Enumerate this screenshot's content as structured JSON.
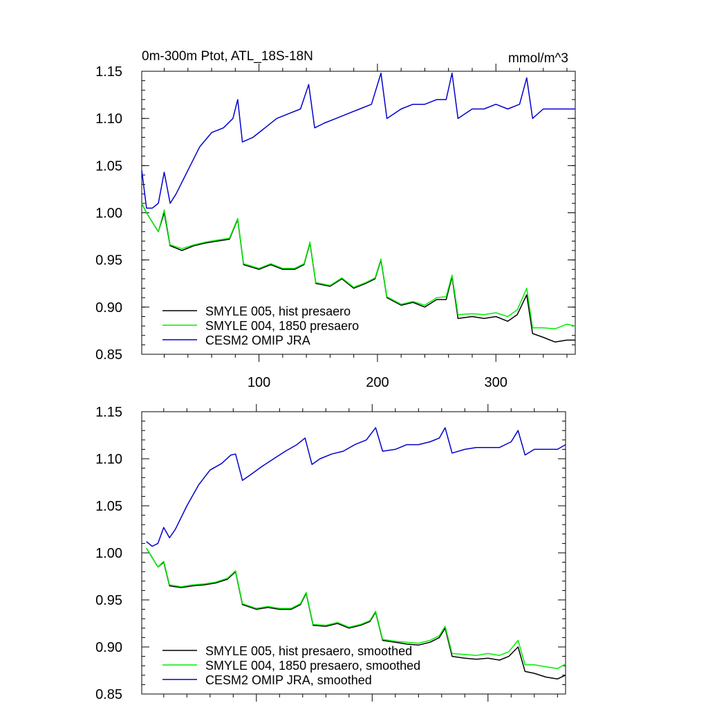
{
  "chart_data": [
    {
      "type": "line",
      "title": "0m-300m Ptot, ATL_18S-18N",
      "units": "mmol/m^3",
      "xlim": [
        1,
        367
      ],
      "ylim": [
        0.85,
        1.15
      ],
      "yticks": [
        "0.85",
        "0.90",
        "0.95",
        "1.00",
        "1.05",
        "1.10",
        "1.15"
      ],
      "xticks": [
        "100",
        "200",
        "300"
      ],
      "grid": false,
      "legend_position": "bottom-left",
      "series": [
        {
          "name": "SMYLE 005, hist presaero",
          "color": "#000000",
          "points": [
            [
              1,
              1.01
            ],
            [
              5,
              1.0
            ],
            [
              10,
              0.99
            ],
            [
              15,
              0.98
            ],
            [
              20,
              1.0
            ],
            [
              25,
              0.965
            ],
            [
              35,
              0.96
            ],
            [
              45,
              0.965
            ],
            [
              55,
              0.968
            ],
            [
              65,
              0.97
            ],
            [
              75,
              0.972
            ],
            [
              82,
              0.993
            ],
            [
              87,
              0.945
            ],
            [
              100,
              0.94
            ],
            [
              110,
              0.945
            ],
            [
              120,
              0.94
            ],
            [
              130,
              0.94
            ],
            [
              138,
              0.945
            ],
            [
              143,
              0.968
            ],
            [
              148,
              0.925
            ],
            [
              160,
              0.922
            ],
            [
              170,
              0.93
            ],
            [
              180,
              0.92
            ],
            [
              190,
              0.925
            ],
            [
              198,
              0.93
            ],
            [
              203,
              0.95
            ],
            [
              208,
              0.91
            ],
            [
              220,
              0.902
            ],
            [
              230,
              0.905
            ],
            [
              240,
              0.9
            ],
            [
              250,
              0.908
            ],
            [
              258,
              0.908
            ],
            [
              263,
              0.932
            ],
            [
              268,
              0.888
            ],
            [
              280,
              0.89
            ],
            [
              290,
              0.888
            ],
            [
              300,
              0.89
            ],
            [
              310,
              0.885
            ],
            [
              318,
              0.892
            ],
            [
              326,
              0.913
            ],
            [
              331,
              0.872
            ],
            [
              340,
              0.868
            ],
            [
              350,
              0.863
            ],
            [
              360,
              0.865
            ],
            [
              367,
              0.865
            ]
          ]
        },
        {
          "name": "SMYLE 004, 1850 presaero",
          "color": "#00ee00",
          "points": [
            [
              1,
              1.01
            ],
            [
              5,
              1.0
            ],
            [
              10,
              0.99
            ],
            [
              15,
              0.98
            ],
            [
              20,
              1.003
            ],
            [
              25,
              0.966
            ],
            [
              35,
              0.962
            ],
            [
              45,
              0.966
            ],
            [
              55,
              0.969
            ],
            [
              65,
              0.971
            ],
            [
              75,
              0.973
            ],
            [
              82,
              0.994
            ],
            [
              87,
              0.946
            ],
            [
              100,
              0.941
            ],
            [
              110,
              0.946
            ],
            [
              120,
              0.941
            ],
            [
              130,
              0.941
            ],
            [
              138,
              0.946
            ],
            [
              143,
              0.969
            ],
            [
              148,
              0.926
            ],
            [
              160,
              0.923
            ],
            [
              170,
              0.931
            ],
            [
              180,
              0.921
            ],
            [
              190,
              0.926
            ],
            [
              198,
              0.931
            ],
            [
              203,
              0.951
            ],
            [
              208,
              0.911
            ],
            [
              220,
              0.903
            ],
            [
              230,
              0.906
            ],
            [
              240,
              0.902
            ],
            [
              250,
              0.91
            ],
            [
              258,
              0.911
            ],
            [
              263,
              0.934
            ],
            [
              268,
              0.892
            ],
            [
              280,
              0.893
            ],
            [
              290,
              0.892
            ],
            [
              300,
              0.894
            ],
            [
              310,
              0.89
            ],
            [
              318,
              0.897
            ],
            [
              326,
              0.92
            ],
            [
              331,
              0.878
            ],
            [
              340,
              0.878
            ],
            [
              350,
              0.877
            ],
            [
              360,
              0.882
            ],
            [
              367,
              0.88
            ]
          ]
        },
        {
          "name": "CESM2 OMIP JRA",
          "color": "#0000cc",
          "points": [
            [
              1,
              1.045
            ],
            [
              5,
              1.005
            ],
            [
              10,
              1.005
            ],
            [
              15,
              1.01
            ],
            [
              20,
              1.043
            ],
            [
              25,
              1.01
            ],
            [
              30,
              1.02
            ],
            [
              40,
              1.045
            ],
            [
              50,
              1.07
            ],
            [
              60,
              1.085
            ],
            [
              70,
              1.09
            ],
            [
              78,
              1.1
            ],
            [
              82,
              1.12
            ],
            [
              86,
              1.075
            ],
            [
              95,
              1.08
            ],
            [
              105,
              1.09
            ],
            [
              115,
              1.1
            ],
            [
              125,
              1.105
            ],
            [
              135,
              1.11
            ],
            [
              142,
              1.136
            ],
            [
              147,
              1.09
            ],
            [
              155,
              1.095
            ],
            [
              165,
              1.1
            ],
            [
              175,
              1.105
            ],
            [
              185,
              1.11
            ],
            [
              195,
              1.115
            ],
            [
              203,
              1.148
            ],
            [
              208,
              1.1
            ],
            [
              220,
              1.11
            ],
            [
              230,
              1.115
            ],
            [
              240,
              1.115
            ],
            [
              250,
              1.12
            ],
            [
              258,
              1.12
            ],
            [
              263,
              1.148
            ],
            [
              268,
              1.1
            ],
            [
              280,
              1.11
            ],
            [
              290,
              1.11
            ],
            [
              300,
              1.115
            ],
            [
              310,
              1.11
            ],
            [
              320,
              1.115
            ],
            [
              326,
              1.143
            ],
            [
              331,
              1.1
            ],
            [
              340,
              1.11
            ],
            [
              350,
              1.11
            ],
            [
              360,
              1.11
            ],
            [
              367,
              1.11
            ]
          ]
        }
      ]
    },
    {
      "type": "line",
      "title": "",
      "xlim": [
        1,
        367
      ],
      "ylim": [
        0.85,
        1.15
      ],
      "yticks": [
        "0.85",
        "0.90",
        "0.95",
        "1.00",
        "1.05",
        "1.10",
        "1.15"
      ],
      "grid": false,
      "legend_position": "bottom-left",
      "series": [
        {
          "name": "SMYLE 005, hist presaero, smoothed",
          "color": "#000000",
          "points": [
            [
              5,
              1.005
            ],
            [
              10,
              0.995
            ],
            [
              15,
              0.985
            ],
            [
              20,
              0.99
            ],
            [
              25,
              0.965
            ],
            [
              35,
              0.963
            ],
            [
              45,
              0.965
            ],
            [
              55,
              0.966
            ],
            [
              65,
              0.968
            ],
            [
              75,
              0.972
            ],
            [
              82,
              0.98
            ],
            [
              88,
              0.945
            ],
            [
              100,
              0.94
            ],
            [
              110,
              0.942
            ],
            [
              120,
              0.94
            ],
            [
              130,
              0.94
            ],
            [
              138,
              0.945
            ],
            [
              143,
              0.957
            ],
            [
              149,
              0.923
            ],
            [
              160,
              0.922
            ],
            [
              170,
              0.925
            ],
            [
              180,
              0.92
            ],
            [
              190,
              0.923
            ],
            [
              198,
              0.927
            ],
            [
              203,
              0.937
            ],
            [
              209,
              0.907
            ],
            [
              220,
              0.905
            ],
            [
              230,
              0.903
            ],
            [
              240,
              0.902
            ],
            [
              250,
              0.905
            ],
            [
              258,
              0.91
            ],
            [
              263,
              0.92
            ],
            [
              269,
              0.89
            ],
            [
              280,
              0.888
            ],
            [
              290,
              0.887
            ],
            [
              300,
              0.888
            ],
            [
              310,
              0.886
            ],
            [
              318,
              0.89
            ],
            [
              326,
              0.9
            ],
            [
              332,
              0.874
            ],
            [
              340,
              0.872
            ],
            [
              350,
              0.868
            ],
            [
              360,
              0.866
            ],
            [
              367,
              0.87
            ]
          ]
        },
        {
          "name": "SMYLE 004, 1850 presaero, smoothed",
          "color": "#00ee00",
          "points": [
            [
              5,
              1.005
            ],
            [
              10,
              0.995
            ],
            [
              15,
              0.985
            ],
            [
              20,
              0.991
            ],
            [
              25,
              0.966
            ],
            [
              35,
              0.964
            ],
            [
              45,
              0.966
            ],
            [
              55,
              0.967
            ],
            [
              65,
              0.969
            ],
            [
              75,
              0.973
            ],
            [
              82,
              0.981
            ],
            [
              88,
              0.946
            ],
            [
              100,
              0.941
            ],
            [
              110,
              0.943
            ],
            [
              120,
              0.941
            ],
            [
              130,
              0.941
            ],
            [
              138,
              0.946
            ],
            [
              143,
              0.958
            ],
            [
              149,
              0.924
            ],
            [
              160,
              0.923
            ],
            [
              170,
              0.926
            ],
            [
              180,
              0.921
            ],
            [
              190,
              0.924
            ],
            [
              198,
              0.928
            ],
            [
              203,
              0.938
            ],
            [
              209,
              0.908
            ],
            [
              220,
              0.906
            ],
            [
              230,
              0.905
            ],
            [
              240,
              0.904
            ],
            [
              250,
              0.907
            ],
            [
              258,
              0.912
            ],
            [
              263,
              0.922
            ],
            [
              269,
              0.893
            ],
            [
              280,
              0.892
            ],
            [
              290,
              0.891
            ],
            [
              300,
              0.893
            ],
            [
              310,
              0.891
            ],
            [
              318,
              0.895
            ],
            [
              326,
              0.907
            ],
            [
              332,
              0.881
            ],
            [
              340,
              0.881
            ],
            [
              350,
              0.879
            ],
            [
              360,
              0.877
            ],
            [
              367,
              0.882
            ]
          ]
        },
        {
          "name": "CESM2 OMIP JRA, smoothed",
          "color": "#0000cc",
          "points": [
            [
              5,
              1.012
            ],
            [
              10,
              1.007
            ],
            [
              15,
              1.01
            ],
            [
              20,
              1.027
            ],
            [
              25,
              1.016
            ],
            [
              30,
              1.025
            ],
            [
              40,
              1.05
            ],
            [
              50,
              1.072
            ],
            [
              60,
              1.088
            ],
            [
              70,
              1.095
            ],
            [
              78,
              1.104
            ],
            [
              82,
              1.105
            ],
            [
              88,
              1.077
            ],
            [
              95,
              1.083
            ],
            [
              105,
              1.092
            ],
            [
              115,
              1.1
            ],
            [
              125,
              1.108
            ],
            [
              135,
              1.115
            ],
            [
              142,
              1.122
            ],
            [
              148,
              1.094
            ],
            [
              155,
              1.1
            ],
            [
              165,
              1.105
            ],
            [
              175,
              1.108
            ],
            [
              185,
              1.115
            ],
            [
              195,
              1.12
            ],
            [
              203,
              1.133
            ],
            [
              209,
              1.108
            ],
            [
              220,
              1.11
            ],
            [
              230,
              1.115
            ],
            [
              240,
              1.115
            ],
            [
              250,
              1.118
            ],
            [
              258,
              1.122
            ],
            [
              263,
              1.133
            ],
            [
              269,
              1.106
            ],
            [
              280,
              1.11
            ],
            [
              290,
              1.112
            ],
            [
              300,
              1.112
            ],
            [
              310,
              1.112
            ],
            [
              320,
              1.118
            ],
            [
              326,
              1.13
            ],
            [
              332,
              1.104
            ],
            [
              340,
              1.11
            ],
            [
              350,
              1.11
            ],
            [
              360,
              1.11
            ],
            [
              367,
              1.115
            ]
          ]
        }
      ]
    }
  ]
}
